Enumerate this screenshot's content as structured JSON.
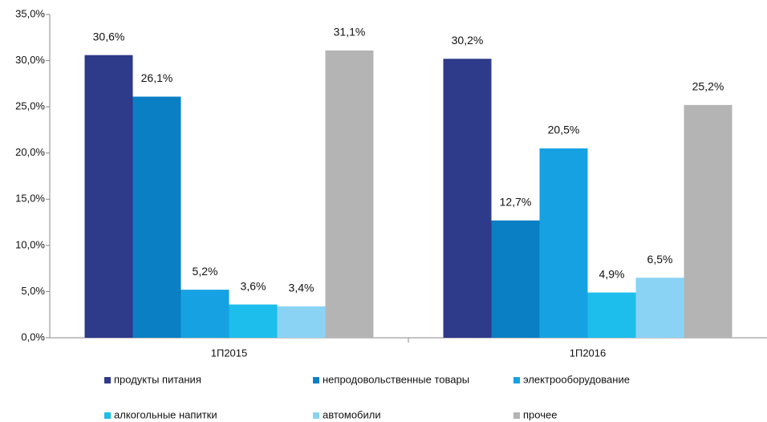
{
  "chart_data": {
    "type": "bar",
    "categories": [
      "1П2015",
      "1П2016"
    ],
    "series": [
      {
        "name": "продукты питания",
        "color": "#2e3a8a",
        "values": [
          30.6,
          30.2
        ],
        "value_labels": [
          "30,6%",
          "30,2%"
        ]
      },
      {
        "name": "непродовольственные товары",
        "color": "#0a7fc4",
        "values": [
          26.1,
          12.7
        ],
        "value_labels": [
          "26,1%",
          "12,7%"
        ]
      },
      {
        "name": "электрооборудование",
        "color": "#16a2e2",
        "values": [
          5.2,
          20.5
        ],
        "value_labels": [
          "5,2%",
          "20,5%"
        ]
      },
      {
        "name": "алкогольные напитки",
        "color": "#1dbdec",
        "values": [
          3.6,
          4.9
        ],
        "value_labels": [
          "3,6%",
          "4,9%"
        ]
      },
      {
        "name": "автомобили",
        "color": "#8bd3f5",
        "values": [
          3.4,
          6.5
        ],
        "value_labels": [
          "3,4%",
          "6,5%"
        ]
      },
      {
        "name": "прочее",
        "color": "#b4b4b4",
        "values": [
          31.1,
          25.2
        ],
        "value_labels": [
          "31,1%",
          "25,2%"
        ]
      }
    ],
    "ylim": [
      0,
      35
    ],
    "yticks": [
      {
        "value": 0,
        "label": "0,0%"
      },
      {
        "value": 5,
        "label": "5,0%"
      },
      {
        "value": 10,
        "label": "10,0%"
      },
      {
        "value": 15,
        "label": "15,0%"
      },
      {
        "value": 20,
        "label": "20,0%"
      },
      {
        "value": 25,
        "label": "25,0%"
      },
      {
        "value": 30,
        "label": "30,0%"
      },
      {
        "value": 35,
        "label": "35,0%"
      }
    ],
    "grid": false,
    "legend": "bottom"
  }
}
